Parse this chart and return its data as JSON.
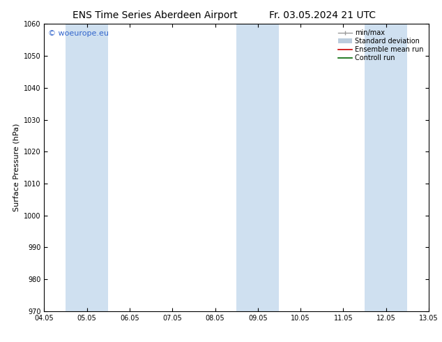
{
  "title_left": "ENS Time Series Aberdeen Airport",
  "title_right": "Fr. 03.05.2024 21 UTC",
  "ylabel": "Surface Pressure (hPa)",
  "ylim": [
    970,
    1060
  ],
  "yticks": [
    970,
    980,
    990,
    1000,
    1010,
    1020,
    1030,
    1040,
    1050,
    1060
  ],
  "xtick_labels": [
    "04.05",
    "05.05",
    "06.05",
    "07.05",
    "08.05",
    "09.05",
    "10.05",
    "11.05",
    "12.05",
    "13.05"
  ],
  "xlim_start": 0.0,
  "xlim_end": 9.0,
  "shaded_bands": [
    {
      "x_start": 0.5,
      "x_end": 1.0,
      "color": "#cfe0f0"
    },
    {
      "x_start": 1.0,
      "x_end": 1.5,
      "color": "#cfe0f0"
    },
    {
      "x_start": 4.5,
      "x_end": 5.0,
      "color": "#cfe0f0"
    },
    {
      "x_start": 5.0,
      "x_end": 5.5,
      "color": "#cfe0f0"
    },
    {
      "x_start": 7.5,
      "x_end": 8.0,
      "color": "#cfe0f0"
    },
    {
      "x_start": 8.0,
      "x_end": 8.5,
      "color": "#cfe0f0"
    }
  ],
  "watermark_text": "© woeurope.eu",
  "watermark_color": "#3366cc",
  "bg_color": "#ffffff",
  "legend_items": [
    {
      "label": "min/max",
      "color": "#999999",
      "style": "errorbar"
    },
    {
      "label": "Standard deviation",
      "color": "#bbccdd",
      "style": "fill"
    },
    {
      "label": "Ensemble mean run",
      "color": "#cc0000",
      "style": "line"
    },
    {
      "label": "Controll run",
      "color": "#006600",
      "style": "line"
    }
  ],
  "font_size_title": 10,
  "font_size_axis": 8,
  "font_size_ticks": 7,
  "font_size_legend": 7,
  "font_size_watermark": 8
}
